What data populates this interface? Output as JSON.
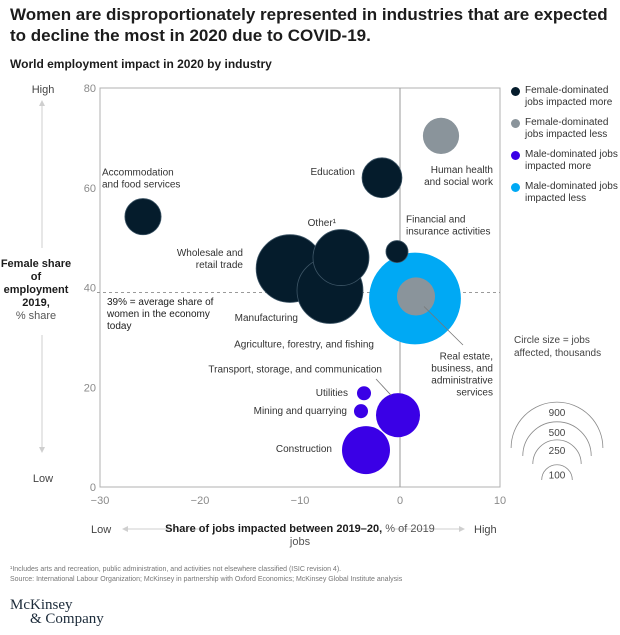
{
  "title": "Women are disproportionately represented in industries that are expected to decline the most in 2020 due to COVID-19.",
  "subtitle": "World employment impact in 2020 by industry",
  "colors": {
    "female_more": "#051c2c",
    "female_less": "#8a949b",
    "male_more": "#3a00e6",
    "male_less": "#00a9f4",
    "grid": "#b0b0b0"
  },
  "y_axis": {
    "high_label": "High",
    "low_label": "Low",
    "title_bold": "Female share of employment 2019,",
    "title_unit": "% share"
  },
  "x_axis": {
    "low_label": "Low",
    "high_label": "High",
    "title_bold": "Share of jobs impacted between 2019–20,",
    "title_unit": "% of 2019 jobs"
  },
  "avg_note": "39% = average share of women in the economy today",
  "legend": [
    {
      "label": "Female-dominated jobs impacted more",
      "color_key": "female_more"
    },
    {
      "label": "Female-dominated jobs impacted less",
      "color_key": "female_less"
    },
    {
      "label": "Male-dominated jobs impacted more",
      "color_key": "male_more"
    },
    {
      "label": "Male-dominated jobs impacted less",
      "color_key": "male_less"
    }
  ],
  "size_legend": {
    "title": "Circle size = jobs affected, thousands",
    "values": [
      900,
      500,
      250,
      100
    ]
  },
  "footnote": "¹Includes arts and recreation, public administration, and activities not elsewhere classified (ISIC revision 4).",
  "source": "Source: International Labour Organization; McKinsey in partnership with Oxford Economics; McKinsey Global Institute analysis",
  "logo": {
    "line1": "McKinsey",
    "line2": "& Company"
  },
  "chart_data": {
    "type": "scatter",
    "title": "World employment impact in 2020 by industry",
    "xlabel": "Share of jobs impacted between 2019–20, % of 2019 jobs",
    "ylabel": "Female share of employment 2019, % share",
    "xlim": [
      -30,
      10
    ],
    "ylim": [
      0,
      80
    ],
    "x_ticks": [
      -30,
      -20,
      -10,
      0,
      10
    ],
    "y_ticks": [
      0,
      20,
      40,
      60,
      80
    ],
    "x_tick_labels": [
      "−30",
      "−20",
      "−10",
      "0",
      "10"
    ],
    "y_tick_labels": [
      "0",
      "20",
      "40",
      "60",
      "80"
    ],
    "reference_line_y": 39,
    "reference_line_x": 0,
    "grid": false,
    "legend_position": "right",
    "size_unit": "jobs affected, thousands",
    "points": [
      {
        "name": "Agriculture, forestry, and fishing",
        "x": 1.5,
        "y": 37.8,
        "size": 900,
        "group": "male_less"
      },
      {
        "name": "Wholesale and retail trade",
        "x": -11.0,
        "y": 43.8,
        "size": 490,
        "group": "female_more"
      },
      {
        "name": "Manufacturing",
        "x": -7.0,
        "y": 39.4,
        "size": 465,
        "group": "female_more"
      },
      {
        "name": "Other¹",
        "x": -5.9,
        "y": 46.0,
        "size": 335,
        "group": "female_more"
      },
      {
        "name": "Education",
        "x": -1.8,
        "y": 62.0,
        "size": 170,
        "group": "female_more"
      },
      {
        "name": "Accommodation and food services",
        "x": -25.7,
        "y": 54.2,
        "size": 140,
        "group": "female_more"
      },
      {
        "name": "Human health and social work",
        "x": 4.1,
        "y": 70.4,
        "size": 140,
        "group": "female_less"
      },
      {
        "name": "Real estate, business, and administrative services",
        "x": 1.6,
        "y": 38.2,
        "size": 155,
        "group": "female_less"
      },
      {
        "name": "Financial and insurance activities",
        "x": -0.3,
        "y": 47.2,
        "size": 52,
        "group": "female_more"
      },
      {
        "name": "Construction",
        "x": -3.4,
        "y": 7.4,
        "size": 246,
        "group": "male_more"
      },
      {
        "name": "Transport, storage, and communication",
        "x": -0.2,
        "y": 14.4,
        "size": 207,
        "group": "male_more"
      },
      {
        "name": "Utilities",
        "x": -3.6,
        "y": 18.8,
        "size": 21,
        "group": "male_more"
      },
      {
        "name": "Mining and quarrying",
        "x": -3.9,
        "y": 15.2,
        "size": 21,
        "group": "male_more"
      }
    ],
    "labels": [
      {
        "text": [
          "Accommodation",
          "and food services"
        ],
        "anchor": "start",
        "x": -29.8,
        "y": 62.5
      },
      {
        "text": [
          "Education"
        ],
        "anchor": "end",
        "x": -4.5,
        "y": 62.6
      },
      {
        "text": [
          "Human health",
          "and social work"
        ],
        "anchor": "end",
        "x": 9.3,
        "y": 63.0
      },
      {
        "text": [
          "Other¹"
        ],
        "anchor": "end",
        "x": -6.4,
        "y": 52.3
      },
      {
        "text": [
          "Financial and",
          "insurance activities"
        ],
        "anchor": "start",
        "x": 0.6,
        "y": 53.0
      },
      {
        "text": [
          "Wholesale and",
          "retail trade"
        ],
        "anchor": "end",
        "x": -15.7,
        "y": 46.3
      },
      {
        "text": [
          "Manufacturing"
        ],
        "anchor": "end",
        "x": -10.2,
        "y": 33.3
      },
      {
        "text": [
          "Agriculture, forestry, and fishing"
        ],
        "anchor": "end",
        "x": -2.6,
        "y": 28.0
      },
      {
        "text": [
          "Transport, storage, and communication"
        ],
        "anchor": "end",
        "x": -1.8,
        "y": 23.0
      },
      {
        "text": [
          "Real estate,",
          "business, and",
          "administrative",
          "services"
        ],
        "anchor": "end",
        "x": 9.3,
        "y": 25.6
      },
      {
        "text": [
          "Utilities"
        ],
        "anchor": "end",
        "x": -5.2,
        "y": 18.2
      },
      {
        "text": [
          "Mining and quarrying"
        ],
        "anchor": "end",
        "x": -5.3,
        "y": 14.6
      },
      {
        "text": [
          "Construction"
        ],
        "anchor": "end",
        "x": -6.8,
        "y": 7.0
      }
    ]
  }
}
